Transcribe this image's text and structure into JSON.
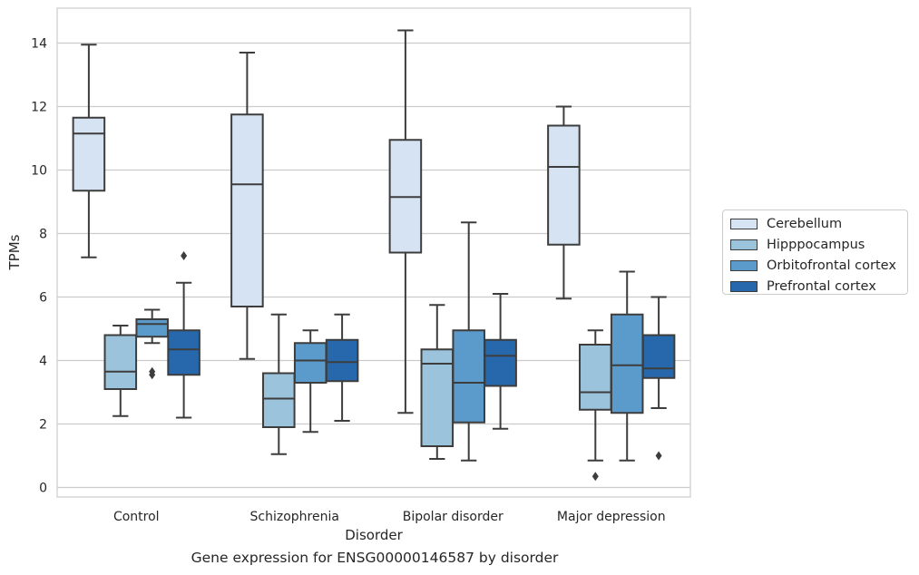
{
  "chart_data": {
    "type": "box",
    "title": "Gene expression for ENSG00000146587 by disorder",
    "xlabel": "Disorder",
    "ylabel": "TPMs",
    "ylim": [
      -0.3,
      15.1
    ],
    "yticks": [
      0,
      2,
      4,
      6,
      8,
      10,
      12,
      14
    ],
    "grid": "horizontal",
    "legend_position": "right",
    "categories": [
      "Control",
      "Schizophrenia",
      "Bipolar disorder",
      "Major depression"
    ],
    "series": [
      {
        "name": "Cerebellum",
        "color": "#d6e3f2",
        "boxes": [
          {
            "whislo": 7.25,
            "q1": 9.35,
            "med": 11.15,
            "q3": 11.65,
            "whishi": 13.95,
            "fliers": []
          },
          {
            "whislo": 4.05,
            "q1": 5.7,
            "med": 9.55,
            "q3": 11.75,
            "whishi": 13.7,
            "fliers": []
          },
          {
            "whislo": 2.35,
            "q1": 7.4,
            "med": 9.15,
            "q3": 10.95,
            "whishi": 14.4,
            "fliers": []
          },
          {
            "whislo": 5.95,
            "q1": 7.65,
            "med": 10.1,
            "q3": 11.4,
            "whishi": 12.0,
            "fliers": []
          }
        ]
      },
      {
        "name": "Hipppocampus",
        "color": "#9cc3dc",
        "boxes": [
          {
            "whislo": 2.25,
            "q1": 3.1,
            "med": 3.65,
            "q3": 4.8,
            "whishi": 5.1,
            "fliers": []
          },
          {
            "whislo": 1.05,
            "q1": 1.9,
            "med": 2.8,
            "q3": 3.6,
            "whishi": 5.45,
            "fliers": []
          },
          {
            "whislo": 0.9,
            "q1": 1.3,
            "med": 3.9,
            "q3": 4.35,
            "whishi": 5.75,
            "fliers": []
          },
          {
            "whislo": 0.85,
            "q1": 2.45,
            "med": 3.0,
            "q3": 4.5,
            "whishi": 4.95,
            "fliers": [
              0.35
            ]
          }
        ]
      },
      {
        "name": "Orbitofrontal cortex",
        "color": "#5b9bcb",
        "boxes": [
          {
            "whislo": 4.55,
            "q1": 4.75,
            "med": 5.15,
            "q3": 5.3,
            "whishi": 5.6,
            "fliers": [
              3.55,
              3.65
            ]
          },
          {
            "whislo": 1.75,
            "q1": 3.3,
            "med": 4.0,
            "q3": 4.55,
            "whishi": 4.95,
            "fliers": []
          },
          {
            "whislo": 0.85,
            "q1": 2.05,
            "med": 3.3,
            "q3": 4.95,
            "whishi": 8.35,
            "fliers": []
          },
          {
            "whislo": 0.85,
            "q1": 2.35,
            "med": 3.85,
            "q3": 5.45,
            "whishi": 6.8,
            "fliers": []
          }
        ]
      },
      {
        "name": "Prefrontal cortex",
        "color": "#2768ac",
        "boxes": [
          {
            "whislo": 2.2,
            "q1": 3.55,
            "med": 4.35,
            "q3": 4.95,
            "whishi": 6.45,
            "fliers": [
              7.3
            ]
          },
          {
            "whislo": 2.1,
            "q1": 3.35,
            "med": 3.95,
            "q3": 4.65,
            "whishi": 5.45,
            "fliers": []
          },
          {
            "whislo": 1.85,
            "q1": 3.2,
            "med": 4.15,
            "q3": 4.65,
            "whishi": 6.1,
            "fliers": []
          },
          {
            "whislo": 2.5,
            "q1": 3.45,
            "med": 3.75,
            "q3": 4.8,
            "whishi": 6.0,
            "fliers": [
              1.0
            ]
          }
        ]
      }
    ]
  }
}
